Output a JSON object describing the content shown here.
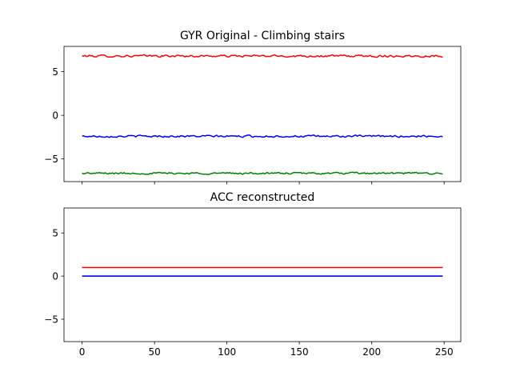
{
  "chart_data": [
    {
      "type": "line",
      "title": "GYR Original - Climbing stairs",
      "xlabel": "",
      "ylabel": "",
      "xlim": [
        -12.5,
        261.5
      ],
      "ylim": [
        -7.6,
        7.9
      ],
      "xticks": [
        0,
        50,
        100,
        150,
        200,
        250
      ],
      "xtick_labels_visible": false,
      "yticks": [
        5,
        0,
        -5
      ],
      "ytick_labels": [
        "5",
        "0",
        "−5"
      ],
      "grid": false,
      "x_start": 0,
      "x_end": 249,
      "series": [
        {
          "color": "#ff0000",
          "mean": 6.8,
          "noise": 0.12,
          "values_description": "noisy signal around 6.8"
        },
        {
          "color": "#0000ff",
          "mean": -2.4,
          "noise": 0.11,
          "values_description": "noisy signal around -2.4"
        },
        {
          "color": "#008000",
          "mean": -6.65,
          "noise": 0.1,
          "values_description": "noisy signal around -6.65"
        }
      ]
    },
    {
      "type": "line",
      "title": "ACC reconstructed",
      "xlabel": "",
      "ylabel": "",
      "xlim": [
        -12.5,
        261.5
      ],
      "ylim": [
        -7.6,
        7.9
      ],
      "xticks": [
        0,
        50,
        100,
        150,
        200,
        250
      ],
      "xtick_labels": [
        "0",
        "50",
        "100",
        "150",
        "200",
        "250"
      ],
      "yticks": [
        5,
        0,
        -5
      ],
      "ytick_labels": [
        "5",
        "0",
        "−5"
      ],
      "grid": false,
      "series": [
        {
          "color": "#ff0000",
          "x": [
            0,
            249
          ],
          "values": [
            1.0,
            1.0
          ]
        },
        {
          "color": "#008000",
          "x": [
            0,
            249
          ],
          "values": [
            0.0,
            0.0
          ]
        },
        {
          "color": "#0000ff",
          "x": [
            0,
            249
          ],
          "values": [
            0.0,
            0.0
          ]
        }
      ]
    }
  ]
}
